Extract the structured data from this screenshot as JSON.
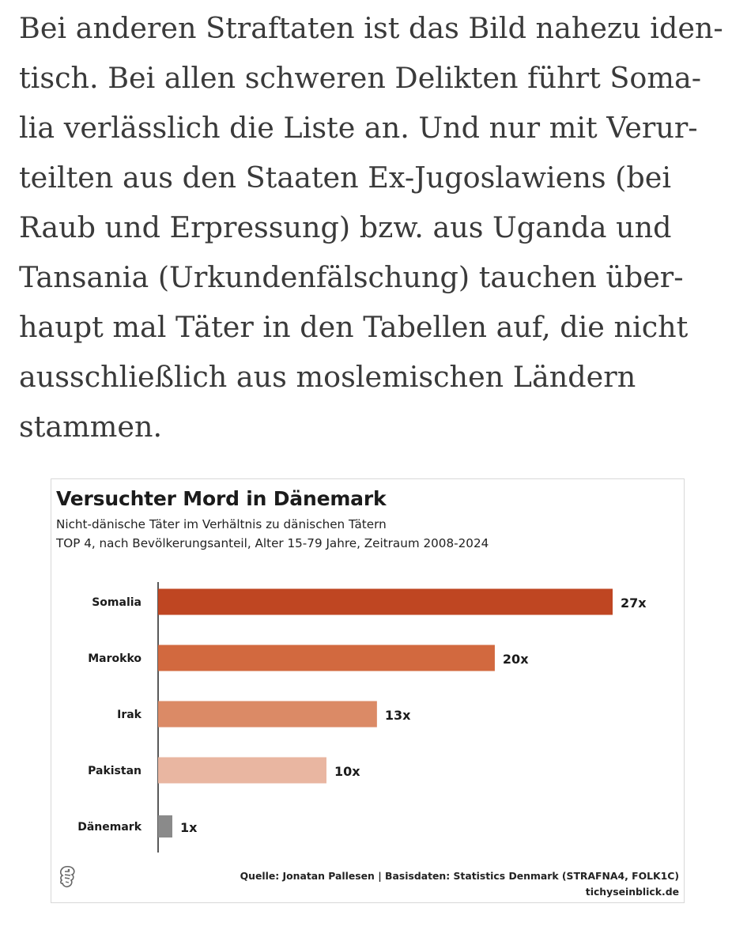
{
  "article": {
    "lines": [
      "Bei anderen Straftaten ist das Bild nahezu iden-",
      "tisch. Bei allen schweren Delikten führt Soma-",
      "lia verlässlich die Liste an. Und nur mit Verur-",
      "teilten aus den Staaten Ex-Jugoslawiens (bei",
      "Raub und Erpressung) bzw. aus Uganda und",
      "Tansania (Urkundenfälschung) tauchen über-",
      "haupt mal Täter in den Tabellen auf, die nicht",
      "ausschließlich aus moslemischen Ländern",
      "stammen."
    ]
  },
  "chart_data": {
    "type": "bar",
    "orientation": "horizontal",
    "title": "Versuchter Mord in Dänemark",
    "subtitle": "Nicht-dänische Täter im Verhältnis zu dänischen Tätern",
    "subtitle2": "TOP 4, nach Bevölkerungsanteil, Alter 15-79 Jahre, Zeitraum 2008-2024",
    "categories": [
      "Somalia",
      "Marokko",
      "Irak",
      "Pakistan",
      "Dänemark"
    ],
    "values": [
      27,
      20,
      13,
      10,
      1
    ],
    "value_labels": [
      "27x",
      "20x",
      "13x",
      "10x",
      "1x"
    ],
    "colors": [
      "#bf4622",
      "#d2693f",
      "#db8a66",
      "#e9b6a1",
      "#8a8a8a"
    ],
    "xlim": [
      0,
      27
    ],
    "grid": false,
    "source": "Quelle: Jonatan Pallesen | Basisdaten: Statistics Denmark (STRAFNA4, FOLK1C)",
    "publisher": "tichyseinblick.de"
  },
  "logo": {
    "icon": "eagle-logo-icon"
  }
}
